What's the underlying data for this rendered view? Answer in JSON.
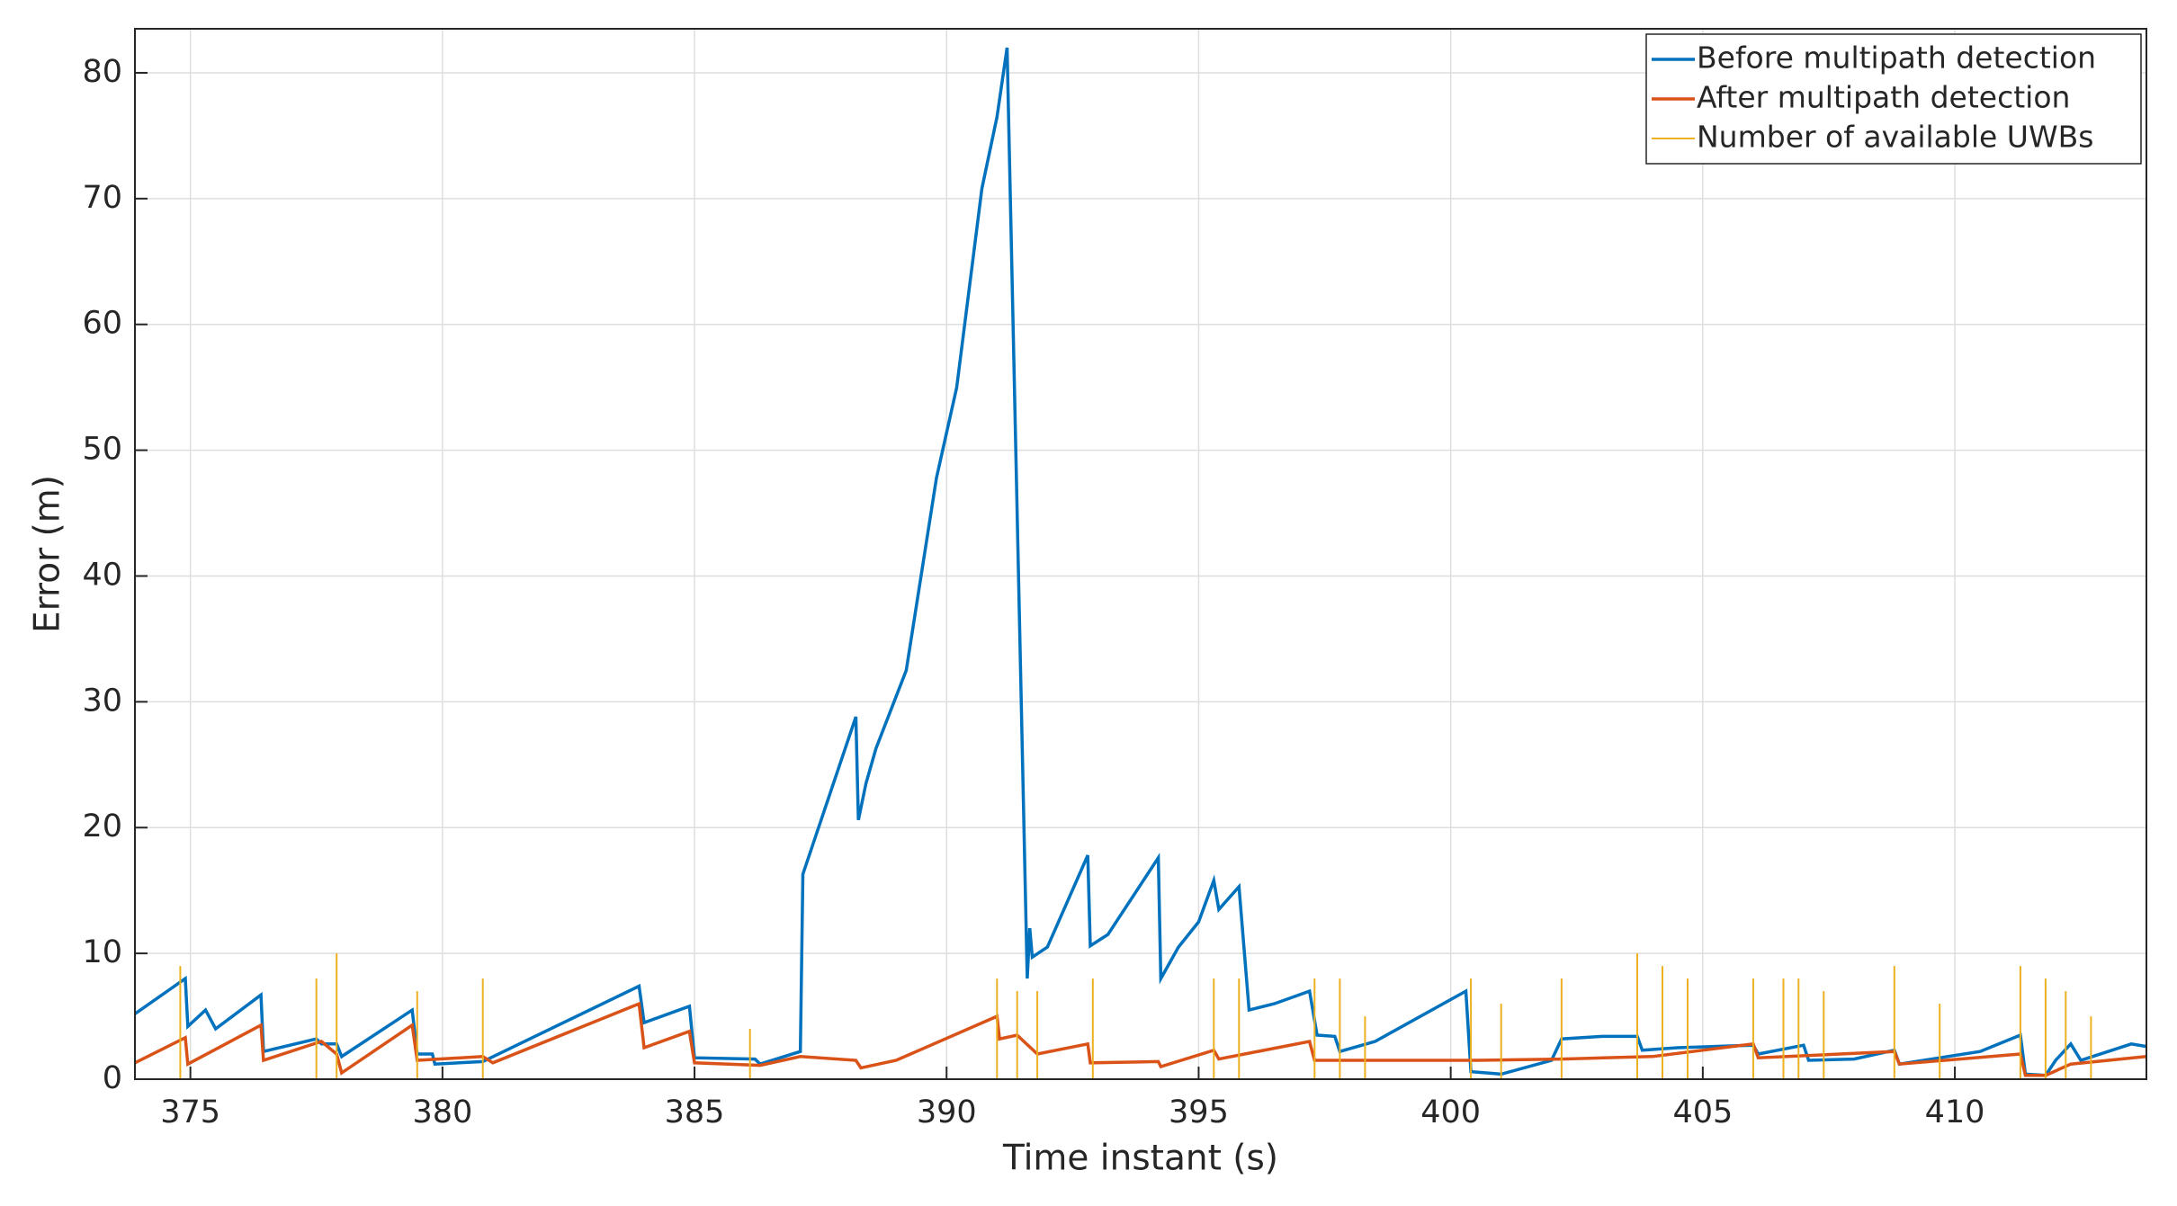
{
  "chart_data": {
    "type": "line",
    "xlabel": "Time instant (s)",
    "ylabel": "Error (m)",
    "xlim": [
      373.9,
      413.8
    ],
    "ylim": [
      0,
      83.5
    ],
    "xticks": [
      375,
      380,
      385,
      390,
      395,
      400,
      405,
      410
    ],
    "yticks": [
      0,
      10,
      20,
      30,
      40,
      50,
      60,
      70,
      80
    ],
    "grid": true,
    "legend": "upper right",
    "series": [
      {
        "name": "Before multipath detection",
        "color": "#0072bd",
        "x": [
          373.9,
          374.9,
          374.95,
          375.3,
          375.5,
          376.4,
          376.45,
          377.5,
          377.6,
          377.9,
          378.0,
          379.4,
          379.5,
          379.8,
          379.85,
          380.8,
          383.9,
          384.0,
          384.9,
          385.0,
          386.2,
          386.3,
          387.1,
          387.15,
          388.2,
          388.25,
          388.4,
          388.6,
          389.2,
          389.8,
          390.2,
          390.7,
          391.0,
          391.2,
          391.6,
          391.65,
          391.7,
          392.0,
          392.8,
          392.85,
          393.2,
          394.2,
          394.25,
          394.6,
          395.0,
          395.3,
          395.4,
          395.8,
          396.0,
          396.5,
          397.2,
          397.35,
          397.7,
          397.8,
          398.5,
          400.3,
          400.4,
          401.0,
          402.0,
          402.2,
          403.0,
          403.7,
          403.8,
          404.5,
          406.0,
          406.1,
          407.0,
          407.1,
          408.0,
          408.8,
          408.9,
          410.5,
          411.3,
          411.4,
          411.8,
          412.0,
          412.3,
          412.5,
          413.5,
          413.8
        ],
        "values": [
          5.2,
          8,
          4.2,
          5.5,
          4,
          6.7,
          2.2,
          3.2,
          2.8,
          2.8,
          1.8,
          5.5,
          2.0,
          2.0,
          1.2,
          1.4,
          7.4,
          4.5,
          5.8,
          1.7,
          1.6,
          1.2,
          2.2,
          16.3,
          28.8,
          20.6,
          23.5,
          26.3,
          32.5,
          47.8,
          55,
          70.8,
          76.5,
          82,
          8,
          12,
          9.7,
          10.5,
          17.8,
          10.6,
          11.5,
          17.6,
          8.0,
          10.5,
          12.5,
          15.8,
          13.5,
          15.3,
          5.5,
          6,
          7.0,
          3.5,
          3.4,
          2.2,
          3.0,
          7.0,
          0.6,
          0.4,
          1.5,
          3.2,
          3.4,
          3.4,
          2.3,
          2.5,
          2.7,
          2.0,
          2.7,
          1.5,
          1.6,
          2.3,
          1.2,
          2.2,
          3.5,
          0.4,
          0.3,
          1.5,
          2.8,
          1.5,
          2.8,
          2.6
        ]
      },
      {
        "name": "After multipath detection",
        "color": "#d95319",
        "x": [
          373.9,
          374.9,
          374.95,
          376.4,
          376.45,
          377.6,
          377.9,
          378.0,
          379.4,
          379.5,
          380.8,
          381.0,
          383.9,
          384.0,
          384.9,
          385.0,
          386.3,
          387.1,
          388.2,
          388.3,
          389.0,
          391.0,
          391.05,
          391.4,
          391.8,
          392.8,
          392.85,
          394.2,
          394.25,
          395.3,
          395.4,
          397.2,
          397.3,
          400.5,
          402.2,
          404.0,
          406.0,
          406.1,
          408.8,
          408.9,
          411.3,
          411.4,
          411.8,
          412.3,
          413.8
        ],
        "values": [
          1.3,
          3.3,
          1.2,
          4.3,
          1.5,
          3.0,
          2.0,
          0.5,
          4.3,
          1.5,
          1.8,
          1.3,
          6.0,
          2.5,
          3.8,
          1.3,
          1.1,
          1.8,
          1.5,
          0.9,
          1.5,
          5.0,
          3.2,
          3.5,
          2.0,
          2.8,
          1.3,
          1.4,
          1.0,
          2.3,
          1.6,
          3.0,
          1.5,
          1.5,
          1.6,
          1.8,
          2.8,
          1.7,
          2.2,
          1.2,
          2.0,
          0.3,
          0.3,
          1.2,
          1.8
        ]
      },
      {
        "name": "Number of available UWBs",
        "color": "#edb120",
        "x": [
          373.9,
          374.8,
          374.8,
          374.8,
          377.5,
          377.5,
          377.5,
          377.9,
          377.9,
          377.9,
          379.5,
          379.5,
          379.5,
          380.8,
          380.8,
          380.8,
          386.1,
          386.1,
          386.1,
          391.0,
          391.0,
          391.0,
          391.4,
          391.4,
          391.4,
          391.8,
          391.8,
          391.8,
          392.9,
          392.9,
          392.9,
          395.3,
          395.3,
          395.3,
          395.8,
          395.8,
          395.8,
          397.3,
          397.3,
          397.3,
          397.8,
          397.8,
          397.8,
          398.3,
          398.3,
          398.3,
          400.4,
          400.4,
          400.4,
          401.0,
          401.0,
          401.0,
          402.2,
          402.2,
          402.2,
          403.7,
          403.7,
          403.7,
          404.2,
          404.2,
          404.2,
          404.7,
          404.7,
          404.7,
          406.0,
          406.0,
          406.0,
          406.6,
          406.6,
          406.6,
          406.9,
          406.9,
          406.9,
          407.4,
          407.4,
          407.4,
          408.8,
          408.8,
          408.8,
          409.7,
          409.7,
          409.7,
          411.3,
          411.3,
          411.3,
          411.8,
          411.8,
          411.8,
          412.2,
          412.2,
          412.2,
          412.7,
          412.7,
          412.7,
          413.8
        ],
        "values": [
          0,
          0,
          9,
          0,
          0,
          8,
          0,
          0,
          10,
          0,
          0,
          7,
          0,
          0,
          8,
          0,
          0,
          4,
          0,
          0,
          8,
          0,
          0,
          7,
          0,
          0,
          7,
          0,
          0,
          8,
          0,
          0,
          8,
          0,
          0,
          8,
          0,
          0,
          8,
          0,
          0,
          8,
          0,
          0,
          5,
          0,
          0,
          8,
          0,
          0,
          6,
          0,
          0,
          8,
          0,
          0,
          10,
          0,
          0,
          9,
          0,
          0,
          8,
          0,
          0,
          8,
          0,
          0,
          8,
          0,
          0,
          8,
          0,
          0,
          7,
          0,
          0,
          9,
          0,
          0,
          6,
          0,
          0,
          9,
          0,
          0,
          8,
          0,
          0,
          7,
          0,
          0,
          5,
          0,
          0
        ]
      }
    ]
  }
}
